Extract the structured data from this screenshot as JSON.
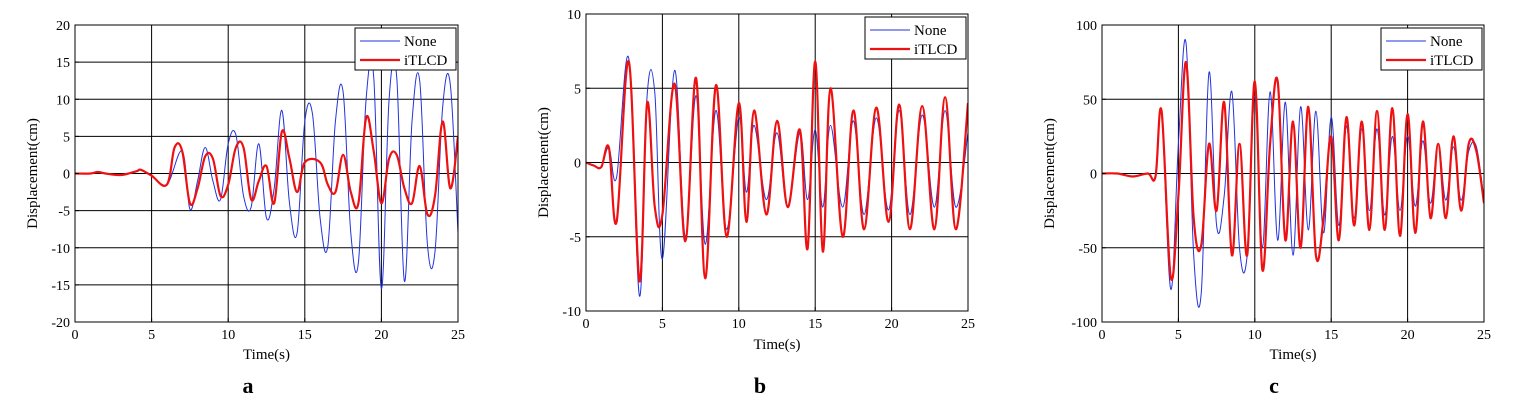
{
  "chart_data": [
    {
      "type": "line",
      "panel_label": "a",
      "xlabel": "Time(s)",
      "ylabel": "Displacement(cm)",
      "xlim": [
        0,
        25
      ],
      "ylim": [
        -20,
        20
      ],
      "xticks": [
        0,
        5,
        10,
        15,
        20,
        25
      ],
      "yticks": [
        -20,
        -15,
        -10,
        -5,
        0,
        5,
        10,
        15,
        20
      ],
      "grid": true,
      "legend_position": "top-right",
      "series": [
        {
          "name": "None",
          "color": "#2233dd",
          "x": [
            0,
            1,
            1.5,
            2,
            3,
            4,
            4.3,
            5,
            6,
            7,
            7.5,
            8,
            8.5,
            9,
            9.5,
            10,
            10.5,
            11,
            11.5,
            12,
            12.5,
            13,
            13.5,
            14,
            14.5,
            15,
            15.5,
            16,
            16.5,
            17,
            17.5,
            18,
            18.5,
            19,
            19.5,
            20,
            20.5,
            21,
            21.5,
            22,
            22.5,
            23,
            23.5,
            24,
            24.5,
            25
          ],
          "y": [
            0,
            0,
            0.2,
            0,
            -0.2,
            0.3,
            0.5,
            -0.3,
            -1.5,
            3,
            -4.8,
            -1,
            3.5,
            -1,
            -3.5,
            4,
            5.2,
            -3,
            -4.5,
            4,
            -6,
            -2,
            8.5,
            -4,
            -8,
            7,
            8,
            -6,
            -9.8,
            7,
            11,
            -8,
            -12,
            10,
            13,
            -15.5,
            10,
            13,
            -14.5,
            7,
            12.5,
            -9.5,
            -10.5,
            9,
            12,
            -8
          ]
        },
        {
          "name": "iTLCD",
          "color": "#ee1111",
          "x": [
            0,
            1,
            1.5,
            2,
            3,
            4,
            4.3,
            5,
            6,
            6.5,
            7,
            7.5,
            8,
            8.5,
            9,
            9.5,
            10,
            10.5,
            11,
            11.5,
            12,
            12.5,
            13,
            13.5,
            14,
            14.5,
            15,
            16,
            16.5,
            17,
            17.5,
            18,
            18.5,
            19,
            19.5,
            20,
            20.5,
            21,
            21.5,
            22,
            22.5,
            23,
            23.5,
            24,
            24.5,
            25
          ],
          "y": [
            0,
            0,
            0.2,
            0,
            -0.2,
            0.3,
            0.5,
            -0.3,
            -1.5,
            3.5,
            3,
            -4,
            -2,
            2.3,
            2,
            -3,
            -1.5,
            3.5,
            3.5,
            -3.5,
            -1,
            1,
            -4,
            5.6,
            2,
            -2.5,
            1.5,
            1.5,
            -1.5,
            -2.5,
            2.5,
            -2.5,
            -4,
            7.5,
            3,
            -4,
            2,
            2.5,
            -2,
            -4,
            1,
            -5.5,
            -3,
            7,
            -2,
            5
          ]
        }
      ]
    },
    {
      "type": "line",
      "panel_label": "b",
      "xlabel": "Time(s)",
      "ylabel": "Displacement(cm)",
      "xlim": [
        0,
        25
      ],
      "ylim": [
        -10,
        10
      ],
      "xticks": [
        0,
        5,
        10,
        15,
        20,
        25
      ],
      "yticks": [
        -10,
        -5,
        0,
        5,
        10
      ],
      "grid": true,
      "legend_position": "top-right",
      "series": [
        {
          "name": "None",
          "color": "#2233dd",
          "x": [
            0,
            0.5,
            1,
            1.5,
            2,
            2.8,
            3.5,
            4,
            4.5,
            5,
            5.8,
            6.5,
            7.2,
            7.8,
            8.5,
            9.2,
            10,
            10.5,
            11,
            11.8,
            12.5,
            13.2,
            14,
            14.5,
            15,
            15.5,
            16,
            16.8,
            17.5,
            18.2,
            19,
            19.8,
            20.5,
            21.2,
            22,
            22.8,
            23.5,
            24.2,
            25
          ],
          "y": [
            0,
            -0.2,
            -0.3,
            1,
            -1,
            7,
            -9,
            4.5,
            4.7,
            -6.5,
            6.2,
            -5,
            4.5,
            -5.5,
            3.5,
            -4.5,
            3,
            -2,
            2.5,
            -2.5,
            2,
            -3,
            2,
            -2.5,
            2.2,
            -3,
            2.5,
            -3,
            2.8,
            -3.5,
            3,
            -3.2,
            3.5,
            -3.5,
            3.2,
            -3,
            3.5,
            -3,
            2
          ]
        },
        {
          "name": "iTLCD",
          "color": "#ee1111",
          "x": [
            0,
            0.5,
            1,
            1.5,
            2,
            2.8,
            3.5,
            4,
            4.5,
            5,
            5.8,
            6.5,
            7.2,
            7.8,
            8.5,
            9.2,
            10,
            10.5,
            11,
            11.8,
            12.5,
            13.2,
            14,
            14.5,
            15,
            15.5,
            16,
            16.8,
            17.5,
            18.2,
            19,
            19.8,
            20.5,
            21.2,
            22,
            22.8,
            23.5,
            24.2,
            25
          ],
          "y": [
            0,
            -0.2,
            -0.3,
            1,
            -4,
            6.8,
            -8,
            4,
            -3,
            -3.5,
            5.3,
            -5.3,
            5.7,
            -7.8,
            5.2,
            -5,
            4,
            -4,
            3.5,
            -3.5,
            2.8,
            -3,
            2.2,
            -5.8,
            6.8,
            -6,
            5,
            -5,
            3.5,
            -4.5,
            3.7,
            -4,
            3.9,
            -4.5,
            3.8,
            -4.5,
            4.4,
            -4.5,
            4
          ]
        }
      ]
    },
    {
      "type": "line",
      "panel_label": "c",
      "xlabel": "Time(s)",
      "ylabel": "Displacement(cm)",
      "xlim": [
        0,
        25
      ],
      "ylim": [
        -100,
        100
      ],
      "xticks": [
        0,
        5,
        10,
        15,
        20,
        25
      ],
      "yticks": [
        -100,
        -50,
        0,
        50,
        100
      ],
      "grid": true,
      "legend_position": "top-right",
      "series": [
        {
          "name": "None",
          "color": "#2233dd",
          "x": [
            0,
            1,
            2,
            3,
            3.5,
            3.9,
            4.5,
            5,
            5.5,
            6,
            6.5,
            7,
            7.5,
            8,
            8.5,
            9,
            9.5,
            10,
            10.5,
            11,
            11.5,
            12,
            12.5,
            13,
            13.5,
            14,
            14.5,
            15,
            15.5,
            16,
            16.5,
            17,
            17.5,
            18,
            18.5,
            19,
            19.5,
            20,
            20.5,
            21,
            21.5,
            22,
            22.5,
            23,
            23.5,
            24,
            24.5,
            25
          ],
          "y": [
            0,
            0,
            -2,
            0,
            -2,
            40,
            -78,
            20,
            88,
            -55,
            -80,
            68,
            -35,
            -15,
            55,
            -50,
            -55,
            52,
            -50,
            55,
            -45,
            48,
            -55,
            45,
            -38,
            42,
            -40,
            38,
            -35,
            32,
            -30,
            30,
            -25,
            30,
            -28,
            25,
            -25,
            25,
            -22,
            22,
            -20,
            20,
            -18,
            18,
            -18,
            15,
            18,
            -18
          ]
        },
        {
          "name": "iTLCD",
          "color": "#ee1111",
          "x": [
            0,
            1,
            2,
            3,
            3.5,
            3.9,
            4.5,
            5,
            5.5,
            6,
            6.5,
            7,
            7.5,
            8,
            8.5,
            9,
            9.5,
            10,
            10.5,
            11,
            11.5,
            12,
            12.5,
            13,
            13.5,
            14,
            14.5,
            15,
            15.5,
            16,
            16.5,
            17,
            17.5,
            18,
            18.5,
            19,
            19.5,
            20,
            20.5,
            21,
            21.5,
            22,
            22.5,
            23,
            23.5,
            24,
            24.5,
            25
          ],
          "y": [
            0,
            0,
            -2,
            0,
            -2,
            42,
            -70,
            -15,
            75,
            -30,
            -48,
            20,
            -25,
            48,
            -55,
            20,
            -55,
            62,
            -65,
            20,
            62,
            -45,
            35,
            -50,
            45,
            -55,
            -30,
            25,
            -45,
            38,
            -35,
            35,
            -38,
            42,
            -38,
            44,
            -42,
            40,
            -40,
            35,
            -30,
            20,
            -30,
            25,
            -25,
            20,
            15,
            -20
          ]
        }
      ]
    }
  ]
}
